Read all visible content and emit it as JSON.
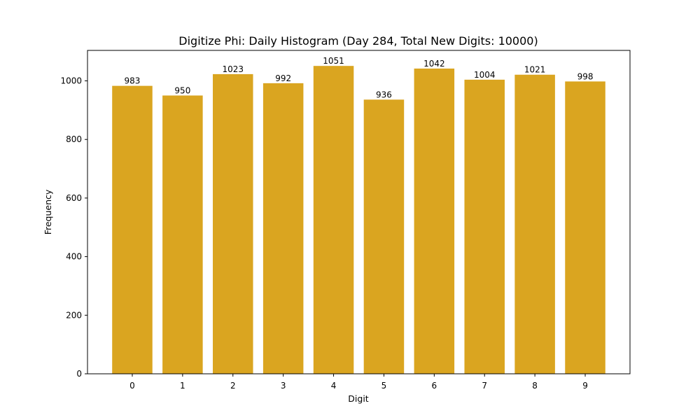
{
  "chart_data": {
    "type": "bar",
    "title": "Digitize Phi: Daily Histogram (Day 284, Total New Digits: 10000)",
    "xlabel": "Digit",
    "ylabel": "Frequency",
    "categories": [
      "0",
      "1",
      "2",
      "3",
      "4",
      "5",
      "6",
      "7",
      "8",
      "9"
    ],
    "values": [
      983,
      950,
      1023,
      992,
      1051,
      936,
      1042,
      1004,
      1021,
      998
    ],
    "bar_labels": [
      "983",
      "950",
      "1023",
      "992",
      "1051",
      "936",
      "1042",
      "1004",
      "1021",
      "998"
    ],
    "ylim": [
      0,
      1104
    ],
    "yticks": [
      0,
      200,
      400,
      600,
      800,
      1000
    ],
    "ytick_labels": [
      "0",
      "200",
      "400",
      "600",
      "800",
      "1000"
    ],
    "grid": false,
    "legend": null,
    "bar_color": "#DAA520"
  }
}
